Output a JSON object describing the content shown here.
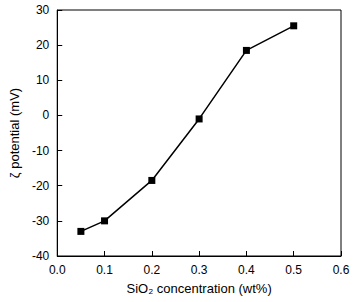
{
  "chart_data": {
    "type": "line",
    "x_label": "SiO₂ concentration (wt%)",
    "y_label": "ζ potential (mV)",
    "x": [
      0.05,
      0.1,
      0.2,
      0.3,
      0.4,
      0.5
    ],
    "values": [
      -33,
      -30,
      -18.5,
      -1,
      18.5,
      25.5
    ],
    "color": "#000000",
    "marker": "square",
    "line_style": "solid",
    "xlim": [
      0,
      0.6
    ],
    "xticks": [
      {
        "value": 0,
        "label": "0.0"
      },
      0.1,
      0.2,
      0.3,
      0.4,
      0.5,
      0.6
    ],
    "ylim": [
      -40,
      30
    ],
    "yticks": [
      -40,
      -30,
      -20,
      -10,
      0,
      10,
      20,
      30
    ],
    "grid": false
  }
}
